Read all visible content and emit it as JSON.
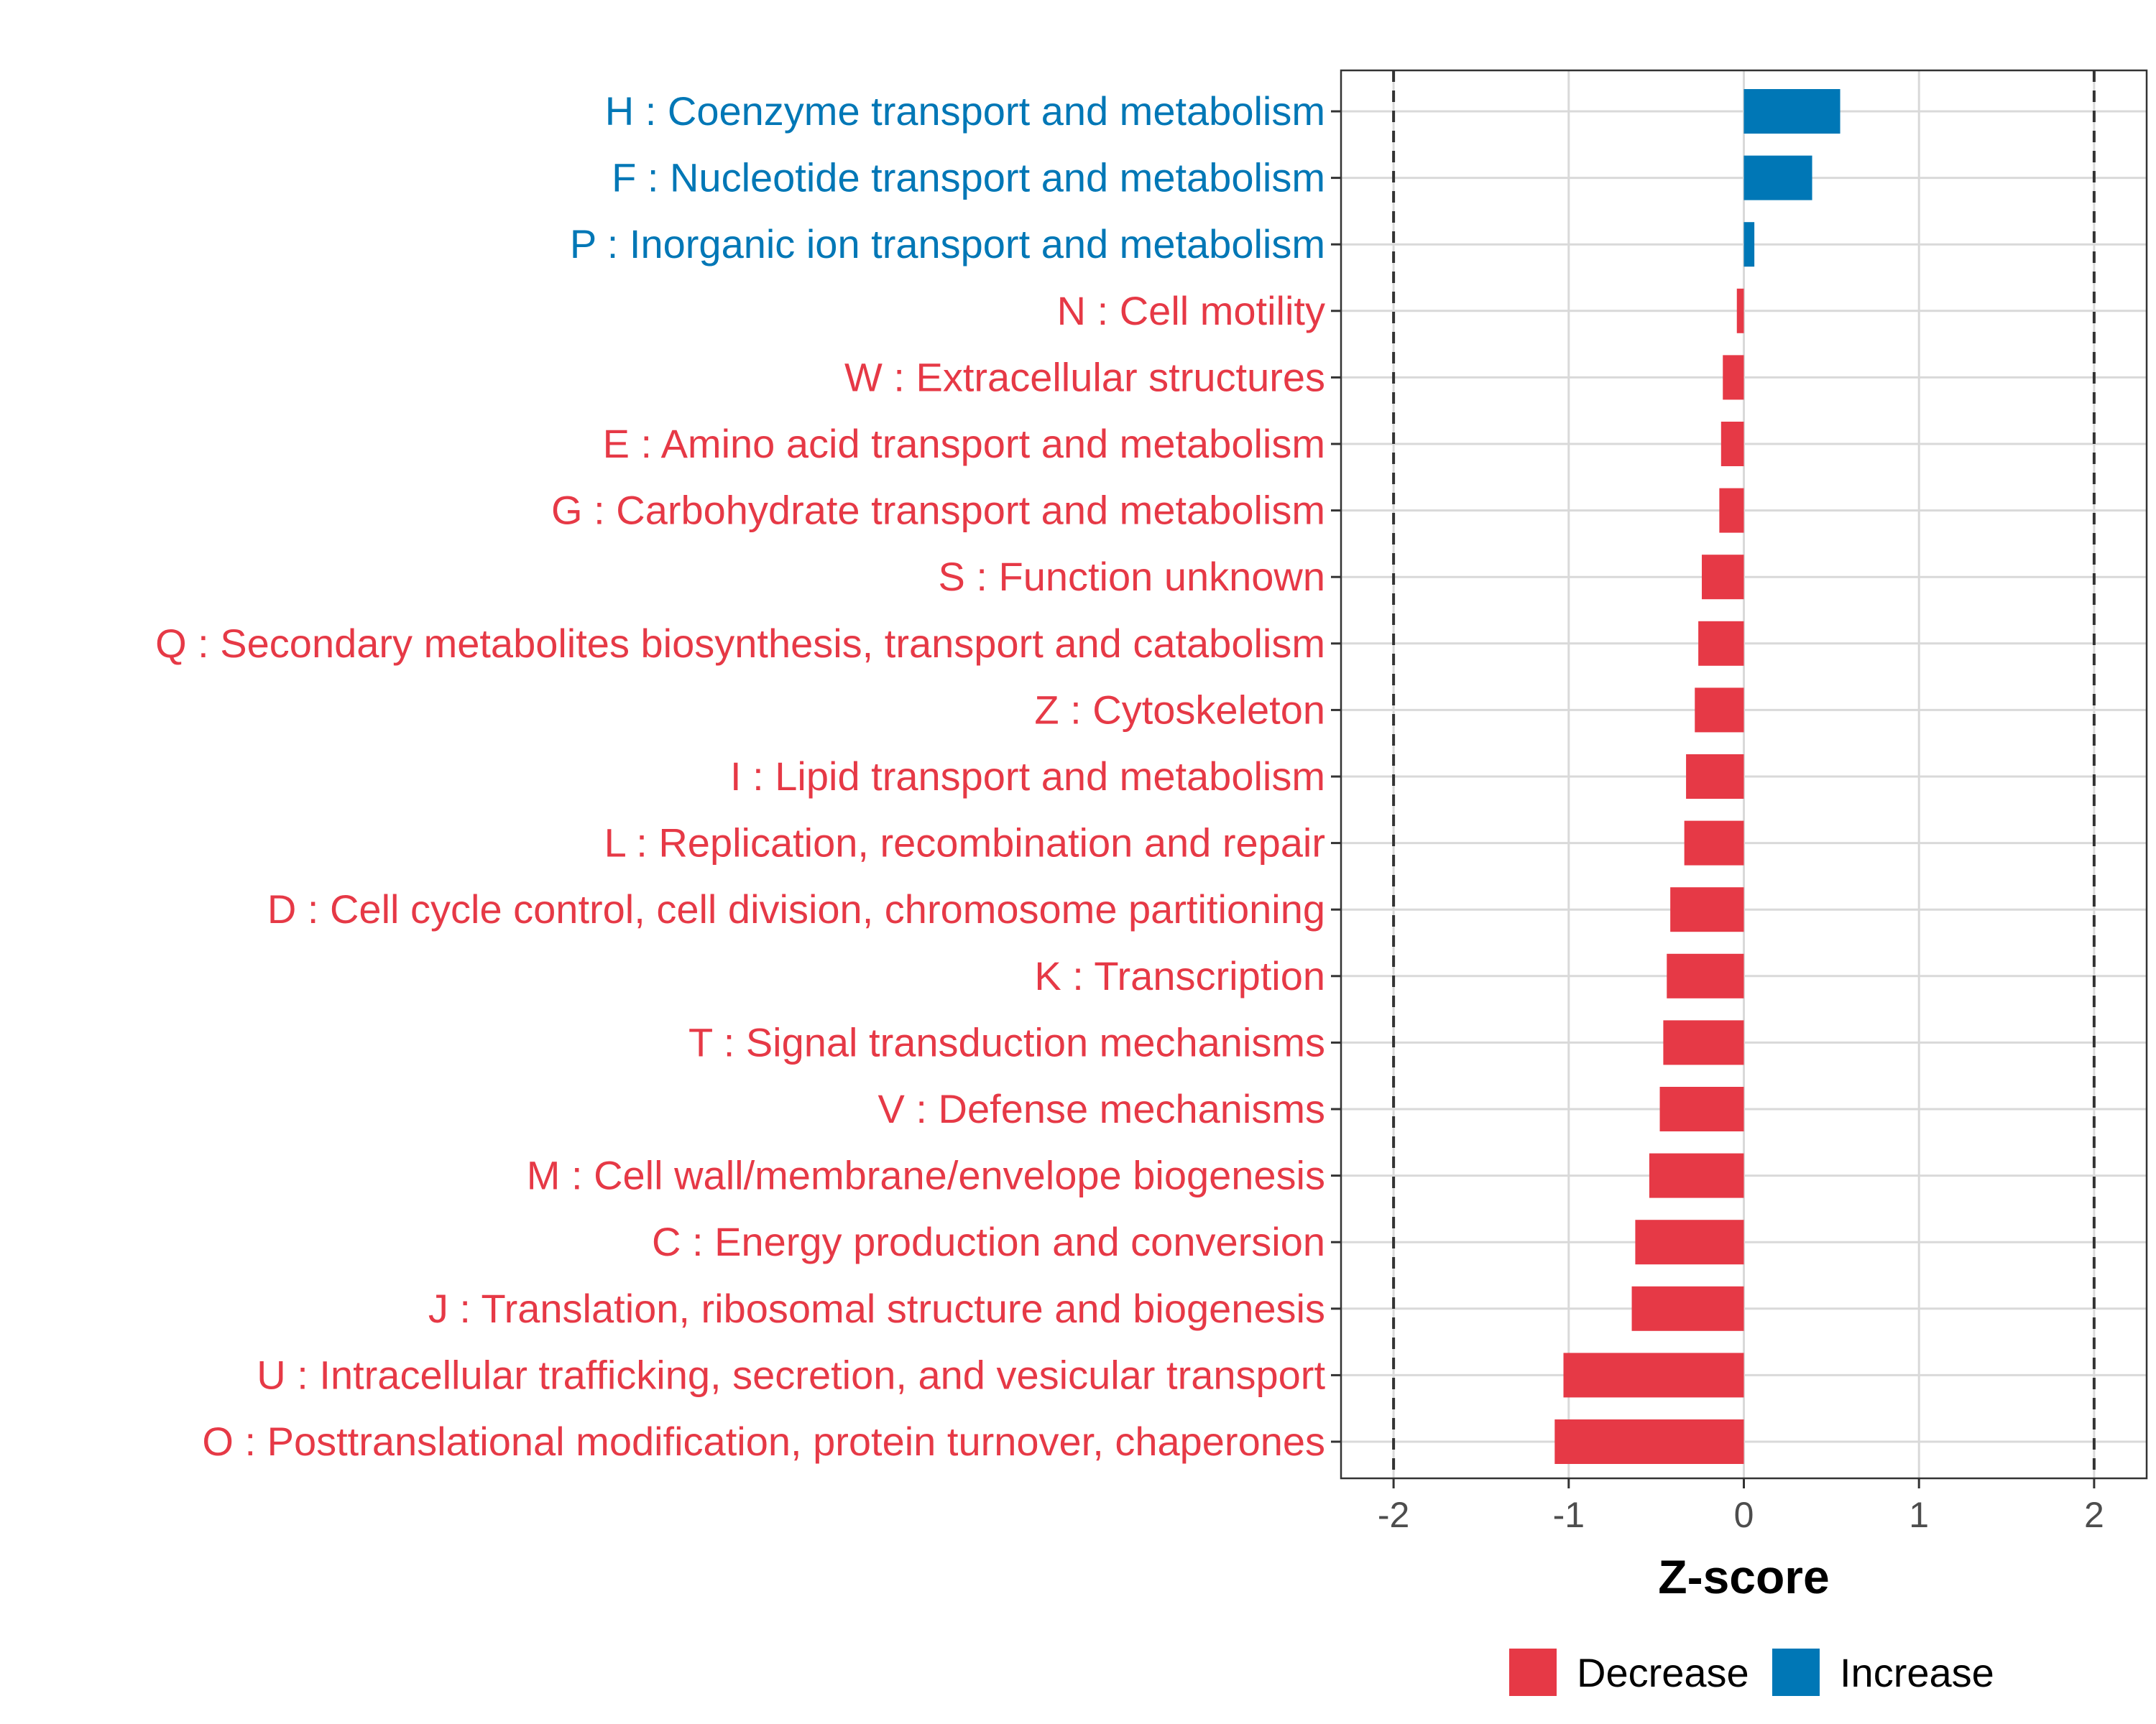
{
  "chart_data": {
    "type": "bar",
    "orientation": "horizontal",
    "title": "",
    "xlabel": "Z-score",
    "ylabel": "",
    "xlim": [
      -2.3,
      2.3
    ],
    "x_ticks": [
      -2,
      -1,
      0,
      1,
      2
    ],
    "x_tick_labels": [
      "-2",
      "-1",
      "0",
      "1",
      "2"
    ],
    "reference_lines": [
      -2,
      2
    ],
    "grid": true,
    "legend_position": "bottom",
    "colors": {
      "Decrease": "#e63946",
      "Increase": "#0077b6"
    },
    "legend": [
      {
        "name": "Decrease",
        "color": "#e63946"
      },
      {
        "name": "Increase",
        "color": "#0077b6"
      }
    ],
    "categories": [
      "H : Coenzyme transport and metabolism",
      "F : Nucleotide transport and metabolism",
      "P : Inorganic ion transport and metabolism",
      "N : Cell motility",
      "W : Extracellular structures",
      "E : Amino acid transport and metabolism",
      "G : Carbohydrate transport and metabolism",
      "S : Function unknown",
      "Q : Secondary metabolites biosynthesis, transport and catabolism",
      "Z : Cytoskeleton",
      "I : Lipid transport and metabolism",
      "L : Replication, recombination and repair",
      "D : Cell cycle control, cell division, chromosome partitioning",
      "K : Transcription",
      "T : Signal transduction mechanisms",
      "V : Defense mechanisms",
      "M : Cell wall/membrane/envelope biogenesis",
      "C : Energy production and conversion",
      "J : Translation, ribosomal structure and biogenesis",
      "U : Intracellular trafficking, secretion, and vesicular transport",
      "O : Posttranslational modification, protein turnover, chaperones"
    ],
    "values": [
      0.55,
      0.39,
      0.06,
      -0.04,
      -0.12,
      -0.13,
      -0.14,
      -0.24,
      -0.26,
      -0.28,
      -0.33,
      -0.34,
      -0.42,
      -0.44,
      -0.46,
      -0.48,
      -0.54,
      -0.62,
      -0.64,
      -1.03,
      -1.08
    ],
    "groups": [
      "Increase",
      "Increase",
      "Increase",
      "Decrease",
      "Decrease",
      "Decrease",
      "Decrease",
      "Decrease",
      "Decrease",
      "Decrease",
      "Decrease",
      "Decrease",
      "Decrease",
      "Decrease",
      "Decrease",
      "Decrease",
      "Decrease",
      "Decrease",
      "Decrease",
      "Decrease",
      "Decrease"
    ]
  }
}
